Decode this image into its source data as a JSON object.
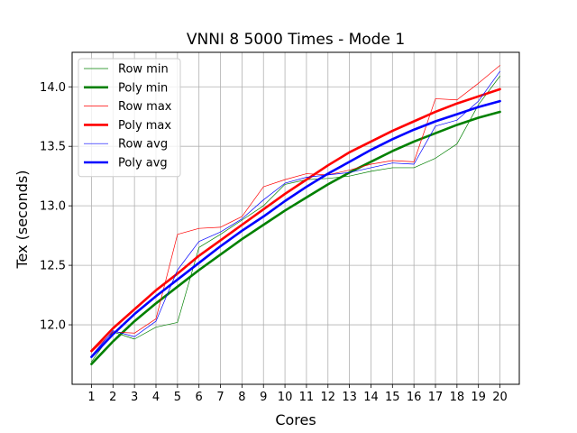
{
  "chart_data": {
    "type": "line",
    "title": "VNNI 8 5000 Times - Mode 1",
    "xlabel": "Cores",
    "ylabel": "Tex (seconds)",
    "x": [
      1,
      2,
      3,
      4,
      5,
      6,
      7,
      8,
      9,
      10,
      11,
      12,
      13,
      14,
      15,
      16,
      17,
      18,
      19,
      20
    ],
    "xlim": [
      0.1,
      20.9
    ],
    "ylim": [
      11.5,
      14.29
    ],
    "yticks": [
      12.0,
      12.5,
      13.0,
      13.5,
      14.0
    ],
    "ytick_labels": [
      "12.0",
      "12.5",
      "13.0",
      "13.5",
      "14.0"
    ],
    "grid": true,
    "legend_position": "top-left",
    "series": [
      {
        "name": "Row min",
        "color": "#008000",
        "style": "thin",
        "values": [
          11.69,
          11.94,
          11.88,
          11.98,
          12.02,
          12.65,
          12.76,
          12.88,
          13.0,
          13.18,
          13.22,
          13.23,
          13.25,
          13.29,
          13.32,
          13.32,
          13.4,
          13.52,
          13.85,
          14.09
        ]
      },
      {
        "name": "Poly min",
        "color": "#008000",
        "style": "thick",
        "values": [
          11.67,
          11.86,
          12.03,
          12.18,
          12.32,
          12.46,
          12.59,
          12.72,
          12.84,
          12.96,
          13.07,
          13.18,
          13.28,
          13.37,
          13.46,
          13.54,
          13.61,
          13.68,
          13.74,
          13.79
        ]
      },
      {
        "name": "Row max",
        "color": "#ff0000",
        "style": "thin",
        "values": [
          11.77,
          11.94,
          11.93,
          12.05,
          12.76,
          12.81,
          12.82,
          12.91,
          13.16,
          13.22,
          13.27,
          13.26,
          13.3,
          13.35,
          13.38,
          13.37,
          13.9,
          13.89,
          14.03,
          14.18
        ]
      },
      {
        "name": "Poly max",
        "color": "#ff0000",
        "style": "thick",
        "values": [
          11.78,
          11.97,
          12.13,
          12.29,
          12.43,
          12.58,
          12.71,
          12.84,
          12.97,
          13.1,
          13.22,
          13.34,
          13.45,
          13.54,
          13.63,
          13.71,
          13.79,
          13.86,
          13.92,
          13.98
        ]
      },
      {
        "name": "Row avg",
        "color": "#0000ff",
        "style": "thin",
        "values": [
          11.74,
          11.95,
          11.9,
          12.03,
          12.46,
          12.7,
          12.78,
          12.89,
          13.05,
          13.19,
          13.24,
          13.26,
          13.28,
          13.32,
          13.36,
          13.35,
          13.67,
          13.72,
          13.88,
          14.13
        ]
      },
      {
        "name": "Poly avg",
        "color": "#0000ff",
        "style": "thick",
        "values": [
          11.73,
          11.92,
          12.09,
          12.24,
          12.38,
          12.52,
          12.66,
          12.79,
          12.91,
          13.04,
          13.16,
          13.27,
          13.37,
          13.47,
          13.56,
          13.64,
          13.71,
          13.77,
          13.83,
          13.88
        ]
      }
    ]
  }
}
